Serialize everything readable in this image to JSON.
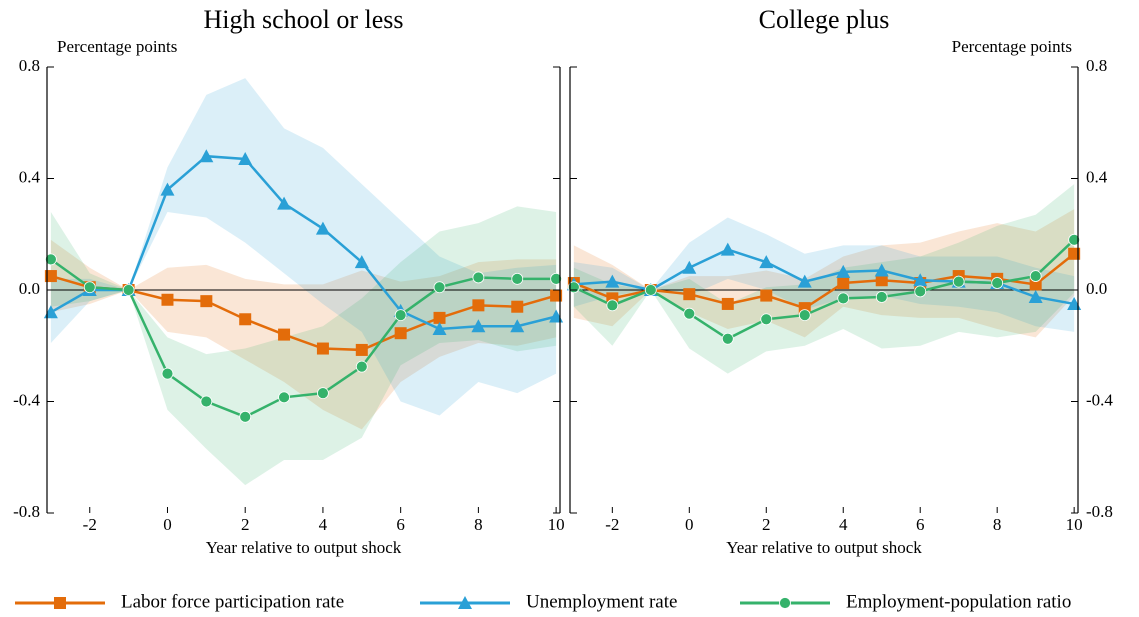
{
  "chart_data": [
    {
      "type": "line",
      "title": "High school or less",
      "y_label": "Percentage points",
      "x_label": "Year relative to output shock",
      "yaxis_side": "left",
      "xlim": [
        -3.1,
        10.1
      ],
      "ylim": [
        -0.8,
        0.8
      ],
      "xticks": [
        -2,
        0,
        2,
        4,
        6,
        8,
        10
      ],
      "yticks": [
        -0.8,
        -0.4,
        {
          "value": 0,
          "label": "0.0"
        },
        0.4,
        0.8
      ],
      "x": [
        -3,
        -2,
        -1,
        0,
        1,
        2,
        3,
        4,
        5,
        6,
        7,
        8,
        9,
        10
      ],
      "series": [
        {
          "name": "Labor force participation rate",
          "color": "#e36c0a",
          "marker": "square",
          "values": [
            0.05,
            0.01,
            0,
            -0.035,
            -0.04,
            -0.105,
            -0.16,
            -0.21,
            -0.215,
            -0.155,
            -0.1,
            -0.055,
            -0.06,
            -0.02
          ],
          "upper": [
            0.18,
            0.08,
            0,
            0.08,
            0.09,
            0.04,
            0.02,
            0.02,
            0.07,
            0.03,
            0.05,
            0.1,
            0.11,
            0.11
          ],
          "lower": [
            -0.08,
            -0.05,
            0,
            -0.15,
            -0.17,
            -0.25,
            -0.33,
            -0.43,
            -0.5,
            -0.33,
            -0.24,
            -0.19,
            -0.2,
            -0.17
          ]
        },
        {
          "name": "Unemployment rate",
          "color": "#2aa0d6",
          "marker": "triangle",
          "values": [
            -0.08,
            0.0,
            0,
            0.36,
            0.48,
            0.47,
            0.31,
            0.22,
            0.1,
            -0.075,
            -0.14,
            -0.13,
            -0.13,
            -0.095
          ],
          "upper": [
            0.04,
            0.04,
            0,
            0.44,
            0.7,
            0.76,
            0.58,
            0.51,
            0.38,
            0.25,
            0.12,
            0.06,
            0.08,
            0.09
          ],
          "lower": [
            -0.19,
            -0.04,
            0,
            0.28,
            0.26,
            0.17,
            0.06,
            -0.05,
            -0.15,
            -0.4,
            -0.45,
            -0.33,
            -0.37,
            -0.3
          ]
        },
        {
          "name": "Employment-population ratio",
          "color": "#35b26b",
          "marker": "circle",
          "values": [
            0.11,
            0.01,
            0,
            -0.3,
            -0.4,
            -0.455,
            -0.385,
            -0.37,
            -0.275,
            -0.09,
            0.01,
            0.045,
            0.04,
            0.04
          ],
          "upper": [
            0.28,
            0.06,
            0,
            -0.17,
            -0.23,
            -0.21,
            -0.17,
            -0.13,
            -0.03,
            0.1,
            0.21,
            0.24,
            0.3,
            0.28
          ],
          "lower": [
            -0.06,
            -0.04,
            0,
            -0.43,
            -0.57,
            -0.7,
            -0.61,
            -0.61,
            -0.53,
            -0.27,
            -0.19,
            -0.18,
            -0.22,
            -0.2
          ]
        }
      ]
    },
    {
      "type": "line",
      "title": "College plus",
      "y_label": "Percentage points",
      "x_label": "Year relative to output shock",
      "yaxis_side": "right",
      "xlim": [
        -3.1,
        10.1
      ],
      "ylim": [
        -0.8,
        0.8
      ],
      "xticks": [
        -2,
        0,
        2,
        4,
        6,
        8,
        10
      ],
      "yticks": [
        -0.8,
        -0.4,
        {
          "value": 0,
          "label": "0.0"
        },
        0.4,
        0.8
      ],
      "x": [
        -3,
        -2,
        -1,
        0,
        1,
        2,
        3,
        4,
        5,
        6,
        7,
        8,
        9,
        10
      ],
      "series": [
        {
          "color": "#e36c0a",
          "marker": "square",
          "values": [
            0.025,
            -0.03,
            0,
            -0.015,
            -0.05,
            -0.02,
            -0.065,
            0.025,
            0.035,
            0.025,
            0.05,
            0.04,
            0.02,
            0.13
          ],
          "upper": [
            0.16,
            0.09,
            0,
            0.05,
            0.05,
            0.07,
            0.04,
            0.12,
            0.16,
            0.17,
            0.21,
            0.24,
            0.21,
            0.29
          ],
          "lower": [
            -0.1,
            -0.13,
            0,
            -0.08,
            -0.14,
            -0.11,
            -0.17,
            -0.06,
            -0.09,
            -0.1,
            -0.1,
            -0.14,
            -0.17,
            -0.02
          ]
        },
        {
          "color": "#2aa0d6",
          "marker": "triangle",
          "values": [
            0.02,
            0.03,
            0,
            0.08,
            0.145,
            0.1,
            0.03,
            0.065,
            0.07,
            0.035,
            0.03,
            0.025,
            -0.025,
            -0.05
          ],
          "upper": [
            0.1,
            0.08,
            0,
            0.17,
            0.26,
            0.2,
            0.13,
            0.16,
            0.16,
            0.12,
            0.12,
            0.12,
            0.08,
            0.05
          ],
          "lower": [
            -0.06,
            -0.02,
            0,
            -0.02,
            0.04,
            0,
            -0.07,
            -0.03,
            -0.02,
            -0.05,
            -0.06,
            -0.08,
            -0.13,
            -0.15
          ]
        },
        {
          "color": "#35b26b",
          "marker": "circle",
          "values": [
            0.01,
            -0.055,
            0,
            -0.085,
            -0.175,
            -0.105,
            -0.09,
            -0.03,
            -0.025,
            -0.005,
            0.03,
            0.025,
            0.05,
            0.18
          ],
          "upper": [
            0.08,
            0.02,
            0,
            0.04,
            -0.05,
            0.01,
            0.02,
            0.08,
            0.1,
            0.12,
            0.17,
            0.23,
            0.27,
            0.38
          ],
          "lower": [
            -0.06,
            -0.2,
            0,
            -0.21,
            -0.3,
            -0.22,
            -0.2,
            -0.14,
            -0.21,
            -0.2,
            -0.15,
            -0.17,
            -0.15,
            -0.01
          ]
        }
      ]
    }
  ]
}
